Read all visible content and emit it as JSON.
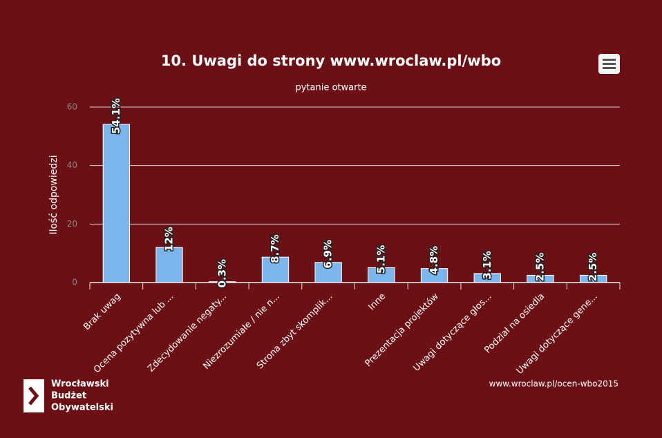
{
  "chart_data": {
    "type": "bar",
    "title": "10. Uwagi do strony www.wroclaw.pl/wbo",
    "subtitle": "pytanie otwarte",
    "y_label": "Ilość odpowiedzi",
    "credit": "www.wroclaw.pl/ocen-wbo2015",
    "logo": [
      "Wrocławski",
      "Budżet",
      "Obywatelski"
    ],
    "categories": [
      "Brak uwag",
      "Ocena pozytywna lub ...",
      "Zdecydowanie negaty...",
      "Niezrozumiałe / nie n...",
      "Strona zbyt skomplik...",
      "Inne",
      "Prezentacja projektów",
      "Uwagi dotyczące głos...",
      "Podział na osiedla",
      "Uwagi dotyczące gene..."
    ],
    "values": [
      54.1,
      12,
      0.3,
      8.7,
      6.9,
      5.1,
      4.8,
      3.1,
      2.5,
      2.5
    ],
    "value_labels": [
      "54.1%",
      "12%",
      "0.3%",
      "8.7%",
      "6.9%",
      "5.1%",
      "4.8%",
      "3.1%",
      "2.5%",
      "2.5%"
    ],
    "color": "#7cb5ec",
    "ylim": [
      0,
      60
    ],
    "yticks": [
      0,
      20,
      40,
      60
    ],
    "grid": true
  }
}
